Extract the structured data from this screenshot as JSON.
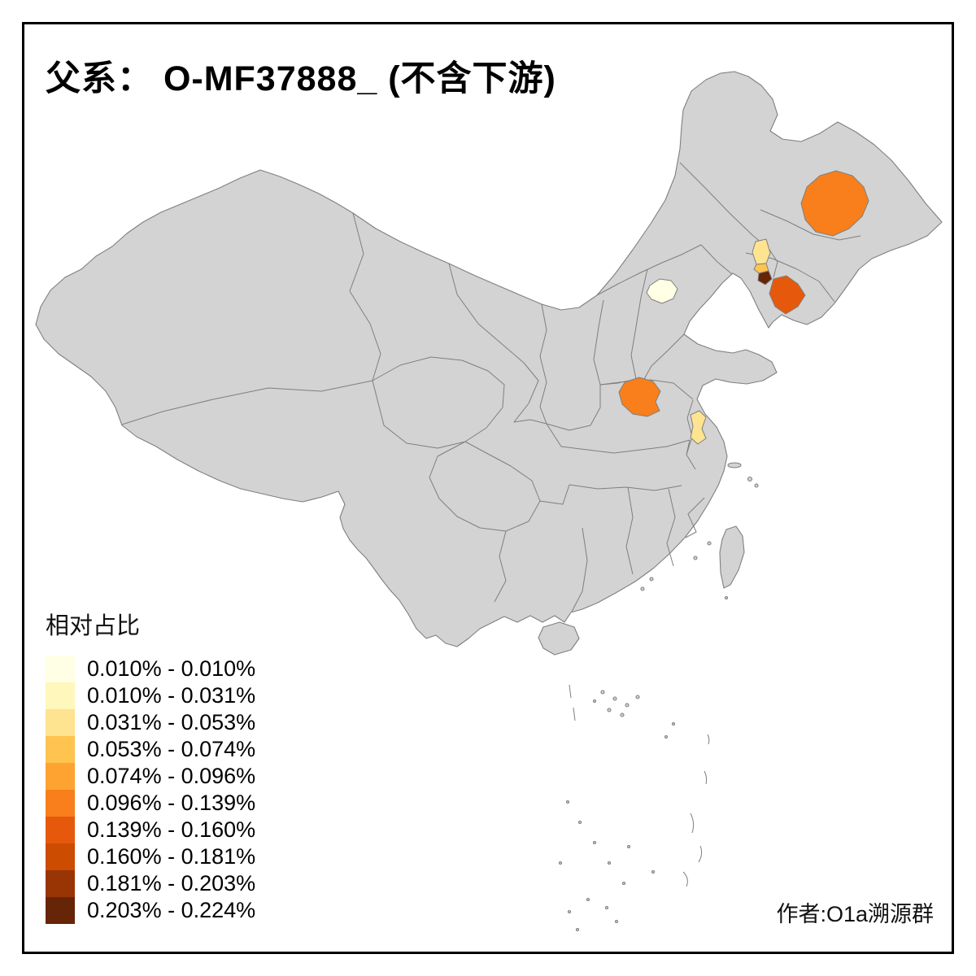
{
  "title": "父系： O-MF37888_ (不含下游)",
  "attribution": "作者:O1a溯源群",
  "legend": {
    "title": "相对占比",
    "items": [
      {
        "range": "0.010% - 0.010%",
        "color": "#FFFFE5"
      },
      {
        "range": "0.010% - 0.031%",
        "color": "#FFF7BC"
      },
      {
        "range": "0.031% - 0.053%",
        "color": "#FEE391"
      },
      {
        "range": "0.053% - 0.074%",
        "color": "#FEC44F"
      },
      {
        "range": "0.074% - 0.096%",
        "color": "#FEA332"
      },
      {
        "range": "0.096% - 0.139%",
        "color": "#F87F1B"
      },
      {
        "range": "0.139% - 0.160%",
        "color": "#E6590C"
      },
      {
        "range": "0.160% - 0.181%",
        "color": "#CC4C02"
      },
      {
        "range": "0.181% - 0.203%",
        "color": "#993404"
      },
      {
        "range": "0.203% - 0.224%",
        "color": "#662506"
      }
    ]
  },
  "map": {
    "base_fill": "#D3D3D3",
    "boundary_color": "#7F7F7F",
    "background": "#FFFFFF",
    "highlighted_regions": [
      {
        "name": "northeast-harbin-area",
        "range": "0.096% - 0.139%",
        "color": "#F87F1B"
      },
      {
        "name": "liaoning-coast-dandong-area",
        "range": "0.139% - 0.160%",
        "color": "#E6590C"
      },
      {
        "name": "liaoning-strip-light",
        "range": "0.031% - 0.053%",
        "color": "#FEE391"
      },
      {
        "name": "liaoning-strip-gold",
        "range": "0.053% - 0.074%",
        "color": "#FEC44F"
      },
      {
        "name": "liaoning-small-dark",
        "range": "0.203% - 0.224%",
        "color": "#662506"
      },
      {
        "name": "beijing-area",
        "range": "0.010% - 0.010%",
        "color": "#FFFFE5"
      },
      {
        "name": "henan-area",
        "range": "0.096% - 0.139%",
        "color": "#F87F1B"
      },
      {
        "name": "anhui-area",
        "range": "0.031% - 0.053%",
        "color": "#FEE391"
      }
    ]
  }
}
